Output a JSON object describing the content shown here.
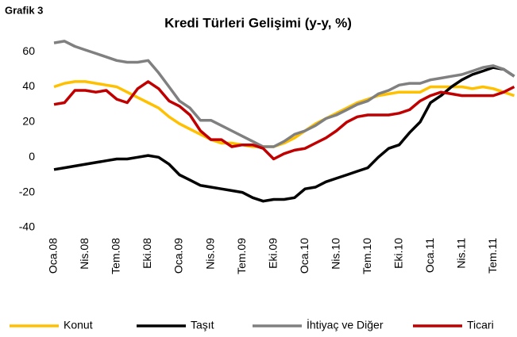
{
  "chart_data": {
    "type": "line",
    "label": "Grafik 3",
    "title": "Kredi Türleri Gelişimi (y-y, %)",
    "categories": [
      "Oca.08",
      null,
      null,
      "Nis.08",
      null,
      null,
      "Tem.08",
      null,
      null,
      "Eki.08",
      null,
      null,
      "Oca.09",
      null,
      null,
      "Nis.09",
      null,
      null,
      "Tem.09",
      null,
      null,
      "Eki.09",
      null,
      null,
      "Oca.10",
      null,
      null,
      "Nis.10",
      null,
      null,
      "Tem.10",
      null,
      null,
      "Eki.10",
      null,
      null,
      "Oca.11",
      null,
      null,
      "Nis.11",
      null,
      null,
      "Tem.11",
      null,
      null
    ],
    "series": [
      {
        "name": "Konut",
        "color": "#ffc000",
        "values": [
          40,
          42,
          43,
          43,
          42,
          41,
          40,
          37,
          34,
          31,
          28,
          23,
          19,
          16,
          13,
          10,
          8,
          8,
          7,
          6,
          6,
          6,
          8,
          11,
          15,
          19,
          22,
          25,
          28,
          31,
          33,
          35,
          36,
          37,
          37,
          37,
          40,
          40,
          40,
          40,
          39,
          40,
          39,
          37,
          35
        ]
      },
      {
        "name": "Taşıt",
        "color": "#000000",
        "values": [
          -7,
          -6,
          -5,
          -4,
          -3,
          -2,
          -1,
          -1,
          0,
          1,
          0,
          -4,
          -10,
          -13,
          -16,
          -17,
          -18,
          -19,
          -20,
          -23,
          -25,
          -24,
          -24,
          -23,
          -18,
          -17,
          -14,
          -12,
          -10,
          -8,
          -6,
          0,
          5,
          7,
          14,
          20,
          31,
          35,
          40,
          44,
          47,
          49,
          51,
          50,
          46
        ]
      },
      {
        "name": "İhtiyaç ve Diğer",
        "color": "#808080",
        "values": [
          65,
          66,
          63,
          61,
          59,
          57,
          55,
          54,
          54,
          55,
          48,
          40,
          32,
          28,
          21,
          21,
          18,
          15,
          12,
          9,
          6,
          6,
          9,
          13,
          15,
          18,
          22,
          24,
          27,
          30,
          32,
          36,
          38,
          41,
          42,
          42,
          44,
          45,
          46,
          47,
          49,
          51,
          52,
          50,
          46
        ]
      },
      {
        "name": "Ticari",
        "color": "#c00000",
        "values": [
          30,
          31,
          38,
          38,
          37,
          38,
          33,
          31,
          39,
          43,
          39,
          32,
          29,
          24,
          15,
          10,
          10,
          6,
          7,
          7,
          5,
          -1,
          2,
          4,
          5,
          8,
          11,
          15,
          20,
          23,
          24,
          24,
          24,
          25,
          27,
          32,
          35,
          37,
          36,
          35,
          35,
          35,
          35,
          37,
          40
        ]
      }
    ],
    "ylim": [
      -40,
      70
    ],
    "yticks": [
      -40,
      -20,
      0,
      20,
      40,
      60
    ],
    "grid": false,
    "legend": "bottom"
  }
}
